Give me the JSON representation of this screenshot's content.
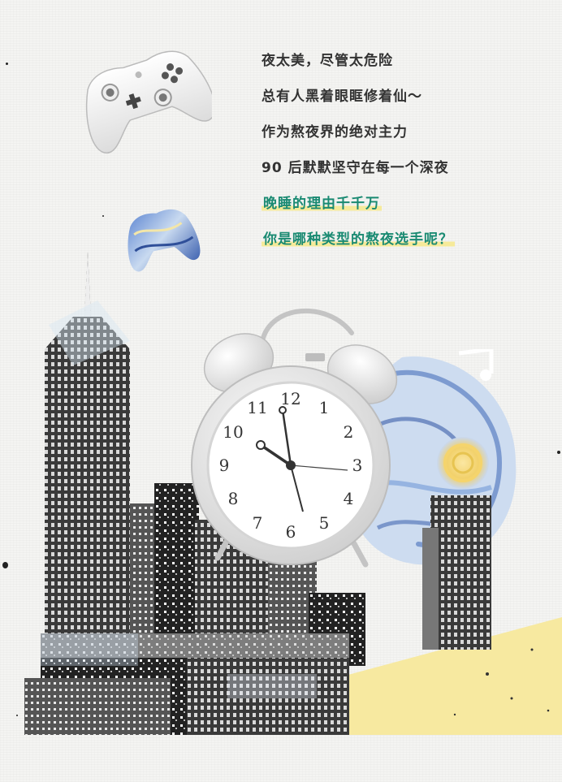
{
  "lines": {
    "l1": "夜太美，尽管太危险",
    "l2": "总有人黑着眼眶修着仙～",
    "l3": "作为熬夜界的绝对主力",
    "l4": "90 后默默坚守在每一个深夜",
    "l5": "晚睡的理由千千万",
    "l6": "你是哪种类型的熬夜选手呢？"
  },
  "clock": {
    "numerals": [
      "12",
      "1",
      "2",
      "3",
      "4",
      "5",
      "6",
      "7",
      "8",
      "9",
      "10",
      "11"
    ]
  },
  "colors": {
    "highlight_text": "#1a8a72",
    "highlight_marker": "#f6ea9a",
    "yellow_shape": "#f7e9a0"
  }
}
